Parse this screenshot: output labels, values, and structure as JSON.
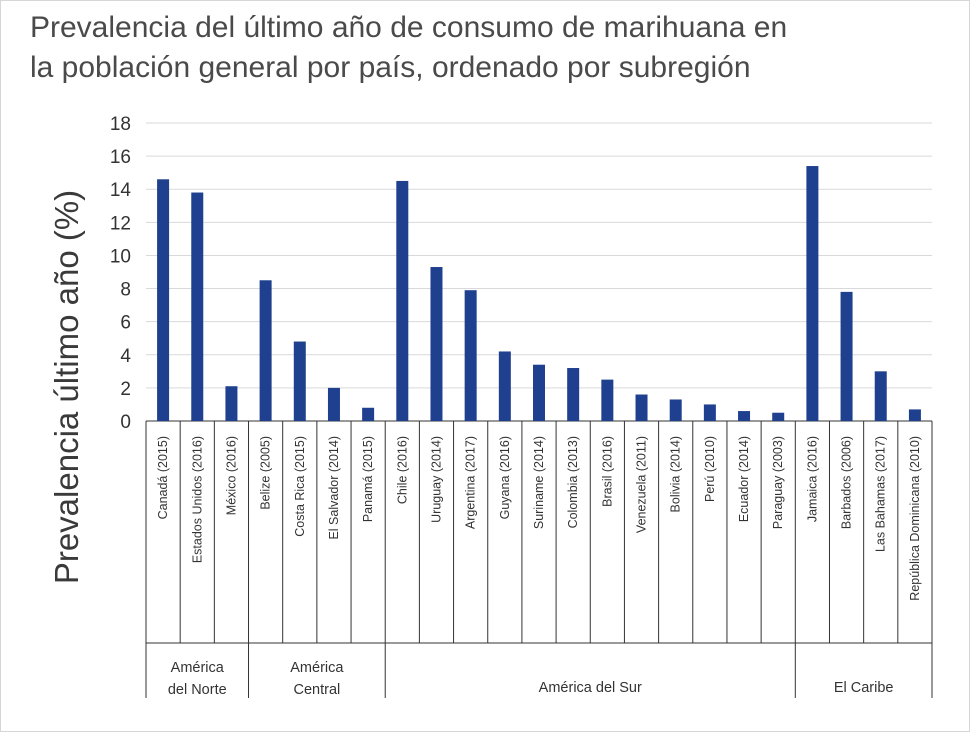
{
  "title": {
    "line1": "Prevalencia del último año de consumo de marihuana en",
    "line2": "la población general por país, ordenado por subregión"
  },
  "colors": {
    "bar": "#1f3f8f",
    "grid": "#d9d9d9",
    "axis": "#333333"
  },
  "chart_data": {
    "type": "bar",
    "ylabel": "Prevalencia último año (%)",
    "xlabel": "",
    "ylim": [
      0,
      18
    ],
    "yticks": [
      0,
      2,
      4,
      6,
      8,
      10,
      12,
      14,
      16,
      18
    ],
    "grid": true,
    "categories": [
      "Canadá (2015)",
      "Estados Unidos (2016)",
      "México (2016)",
      "Belize (2005)",
      "Costa Rica (2015)",
      "El Salvador (2014)",
      "Panamá (2015)",
      "Chile (2016)",
      "Uruguay (2014)",
      "Argentina (2017)",
      "Guyana (2016)",
      "Suriname (2014)",
      "Colombia (2013)",
      "Brasil (2016)",
      "Venezuela (2011)",
      "Bolivia (2014)",
      "Perú (2010)",
      "Ecuador (2014)",
      "Paraguay (2003)",
      "Jamaica (2016)",
      "Barbados (2006)",
      "Las Bahamas (2017)",
      "República Dominicana (2010)"
    ],
    "values": [
      14.6,
      13.8,
      2.1,
      8.5,
      4.8,
      2.0,
      0.8,
      14.5,
      9.3,
      7.9,
      4.2,
      3.4,
      3.2,
      2.5,
      1.6,
      1.3,
      1.0,
      0.6,
      0.5,
      15.4,
      7.8,
      3.0,
      0.7
    ],
    "groups": [
      {
        "label": [
          "América",
          "del Norte"
        ],
        "start": 0,
        "end": 2
      },
      {
        "label": [
          "América",
          "Central"
        ],
        "start": 3,
        "end": 6
      },
      {
        "label": [
          "América del Sur"
        ],
        "start": 7,
        "end": 18
      },
      {
        "label": [
          "El Caribe"
        ],
        "start": 19,
        "end": 22
      }
    ]
  }
}
